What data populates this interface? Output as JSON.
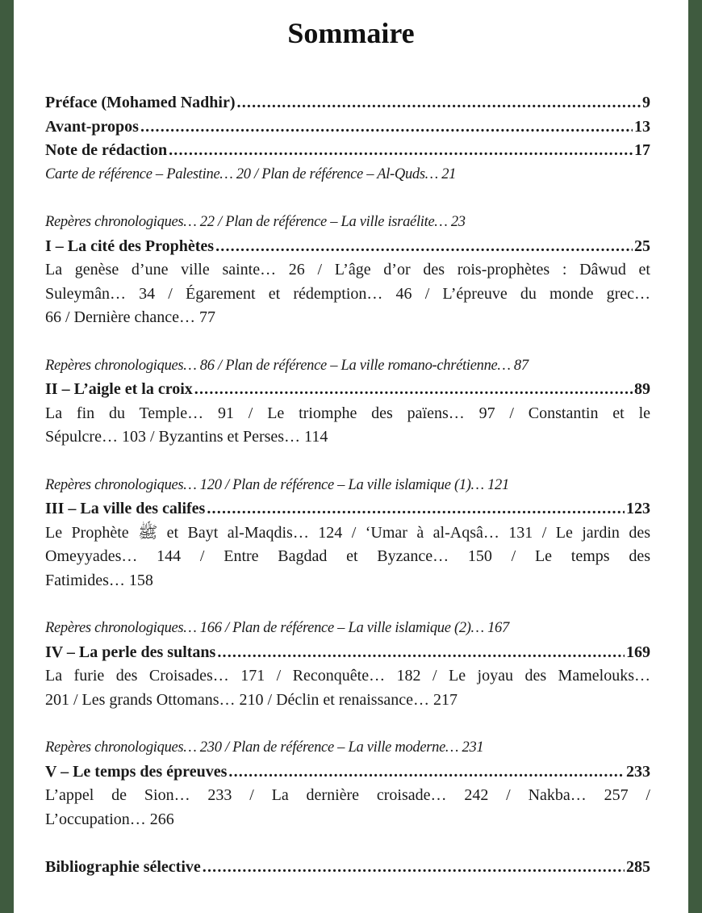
{
  "title": "Sommaire",
  "front": [
    {
      "label": "Préface (Mohamed Nadhir)",
      "page": "9"
    },
    {
      "label": "Avant-propos ",
      "page": "13"
    },
    {
      "label": "Note de rédaction",
      "page": "17"
    }
  ],
  "front_note": "Carte de référence – Palestine… 20 / Plan de référence – Al-Quds… 21",
  "chapters": [
    {
      "note": "Repères chronologiques… 22 / Plan de référence – La ville israélite… 23",
      "label": "I – La cité des Prophètes",
      "page": "25",
      "lines": [
        "La genèse d’une ville sainte… 26 / L’âge d’or des rois-prophètes : Dâwud et",
        "Suleymân… 34 / Égarement et rédemption… 46 / L’épreuve du monde grec…",
        "66 / Dernière chance… 77"
      ]
    },
    {
      "note": "Repères chronologiques… 86 / Plan de référence – La ville romano-chrétienne… 87",
      "label": "II – L’aigle et la croix",
      "page": "89",
      "lines": [
        "La fin du Temple… 91 / Le triomphe des païens… 97 / Constantin et le",
        "Sépulcre… 103 / Byzantins et Perses… 114"
      ]
    },
    {
      "note": "Repères chronologiques… 120 / Plan de référence – La ville islamique (1)… 121",
      "label": "III – La ville des califes",
      "page": "123",
      "lines": [
        "Le Prophète ﷺ et Bayt al-Maqdis… 124 / ‘Umar à al-Aqsâ… 131 / Le jardin des",
        "Omeyyades… 144 / Entre Bagdad et Byzance… 150 / Le temps des",
        "Fatimides… 158"
      ]
    },
    {
      "note": "Repères chronologiques… 166 / Plan de référence – La ville islamique (2)… 167",
      "label": "IV – La perle des sultans",
      "page": "169",
      "lines": [
        "La furie des Croisades… 171 / Reconquête… 182 / Le joyau des Mamelouks…",
        "201 / Les grands Ottomans… 210 / Déclin et renaissance… 217"
      ]
    },
    {
      "note": "Repères chronologiques… 230 / Plan de référence – La ville moderne… 231",
      "label": "V – Le temps des épreuves",
      "page": "233",
      "lines": [
        "L’appel de Sion… 233 / La dernière croisade… 242 / Nakba… 257 /",
        "L’occupation… 266"
      ]
    }
  ],
  "back": {
    "label": "Bibliographie sélective",
    "page": "285"
  }
}
